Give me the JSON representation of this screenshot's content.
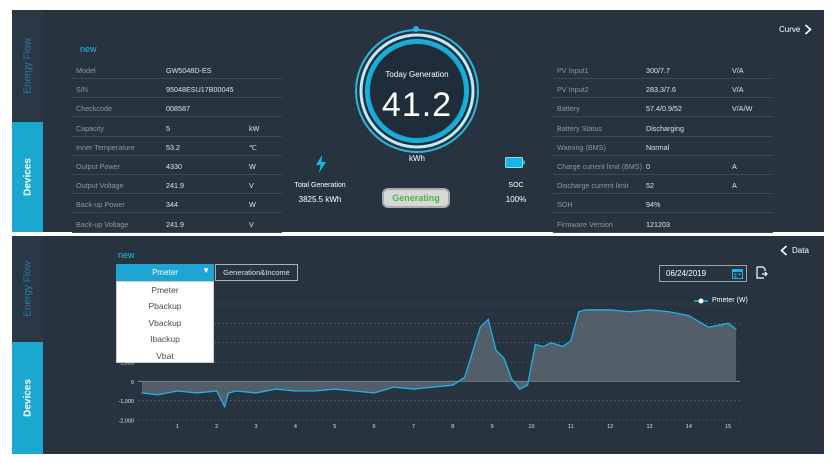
{
  "top": {
    "side_tabs": {
      "energy_flow": "Energy Flow",
      "devices": "Devices"
    },
    "new_label": "new",
    "curve_label": "Curve",
    "left_rows": [
      {
        "label": "Model",
        "value": "GW5048D-ES",
        "unit": ""
      },
      {
        "label": "S/N",
        "value": "95048ESU17B00045",
        "unit": ""
      },
      {
        "label": "Checkcode",
        "value": "008587",
        "unit": ""
      },
      {
        "label": "Capacity",
        "value": "5",
        "unit": "kW"
      },
      {
        "label": "Inner Temperature",
        "value": "53.2",
        "unit": "℃"
      },
      {
        "label": "Output Power",
        "value": "4330",
        "unit": "W"
      },
      {
        "label": "Output Voltage",
        "value": "241.9",
        "unit": "V"
      },
      {
        "label": "Back-up Power",
        "value": "344",
        "unit": "W"
      },
      {
        "label": "Back-up Voltage",
        "value": "241.9",
        "unit": "V"
      }
    ],
    "right_rows": [
      {
        "label": "PV Input1",
        "value": "300/7.7",
        "unit": "V/A"
      },
      {
        "label": "PV Input2",
        "value": "283.3/7.6",
        "unit": "V/A"
      },
      {
        "label": "Battery",
        "value": "57.4/0.9/52",
        "unit": "V/A/W"
      },
      {
        "label": "Battery Status",
        "value": "Discharging",
        "unit": ""
      },
      {
        "label": "Warning (BMS)",
        "value": "Normal",
        "unit": ""
      },
      {
        "label": "Charge current limit (BMS)",
        "value": "0",
        "unit": "A"
      },
      {
        "label": "Discharge current limit",
        "value": "52",
        "unit": "A"
      },
      {
        "label": "SOH",
        "value": "94%",
        "unit": ""
      },
      {
        "label": "Firmware Version",
        "value": "121203",
        "unit": ""
      }
    ],
    "gauge": {
      "title": "Today Generation",
      "value": "41.2",
      "unit": "kWh"
    },
    "total_generation": {
      "label": "Total Generation",
      "value": "3825.5 kWh"
    },
    "soc": {
      "label": "SOC",
      "value": "100%"
    },
    "status_button": "Generating",
    "colors": {
      "accent": "#1aa8cf",
      "status_green": "#4bb848",
      "panel": "#273440"
    }
  },
  "bottom": {
    "side_tabs": {
      "energy_flow": "Energy Flow",
      "devices": "Devices"
    },
    "new_label": "new",
    "data_label": "Data",
    "select_value": "Pmeter",
    "dropdown_options": [
      "Pmeter",
      "Pbackup",
      "Vbackup",
      "Ibackup",
      "Vbat"
    ],
    "income_tab": "Generation&Income",
    "date": "06/24/2019",
    "legend": "Pmeter  (W)"
  },
  "chart_data": {
    "type": "area",
    "series": [
      {
        "name": "Pmeter  (W)",
        "x": [
          0.1,
          0.5,
          1,
          1.5,
          2,
          2.2,
          2.3,
          2.5,
          3,
          3.5,
          4,
          4.5,
          5,
          5.5,
          6,
          6.5,
          7,
          7.5,
          8,
          8.3,
          8.5,
          8.7,
          8.9,
          9.1,
          9.3,
          9.5,
          9.7,
          9.9,
          10.1,
          10.3,
          10.5,
          10.8,
          11,
          11.2,
          11.4,
          11.6,
          12,
          12.5,
          13,
          13.5,
          14,
          14.5,
          15,
          15.2
        ],
        "values": [
          -600,
          -700,
          -500,
          -600,
          -500,
          -1300,
          -600,
          -500,
          -600,
          -400,
          -500,
          -500,
          -400,
          -500,
          -600,
          -300,
          -400,
          -300,
          -200,
          200,
          1500,
          2800,
          3200,
          1600,
          1200,
          100,
          -400,
          -200,
          1900,
          1800,
          2000,
          1800,
          2100,
          3600,
          3700,
          3700,
          3700,
          3600,
          3700,
          3600,
          3400,
          2800,
          3000,
          2700
        ]
      }
    ],
    "yticks": [
      "1,000",
      "0",
      "-1,000",
      "-2,000"
    ],
    "xticks": [
      "1",
      "2",
      "3",
      "4",
      "5",
      "6",
      "7",
      "8",
      "9",
      "10",
      "11",
      "12",
      "13",
      "14",
      "15"
    ],
    "ylim": [
      -2000,
      4000
    ],
    "xlim": [
      0,
      15.3
    ],
    "grid": true,
    "legend_position": "top-right",
    "color": "#1ab5e2"
  }
}
